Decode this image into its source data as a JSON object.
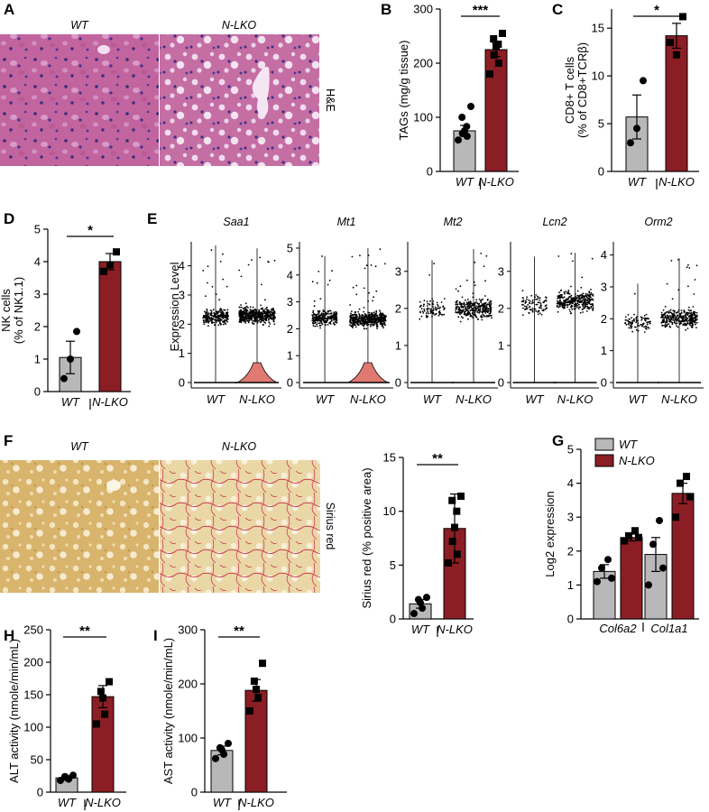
{
  "colors": {
    "wt": "#b8b8b8",
    "nlko": "#8b1e24",
    "violin": "#e07a70"
  },
  "panels": {
    "A": {
      "letter": "A",
      "left_label": "WT",
      "right_label": "N-LKO",
      "stain": "H&E"
    },
    "F": {
      "letter": "F",
      "left_label": "WT",
      "right_label": "N-LKO",
      "stain": "Sirius red"
    },
    "E": {
      "letter": "E",
      "ylabel": "Expression Level"
    },
    "G": {
      "letter": "G"
    }
  },
  "chart_data": [
    {
      "id": "B",
      "type": "bar",
      "letter": "B",
      "categories": [
        "WT",
        "N-LKO"
      ],
      "values": [
        75,
        225
      ],
      "errors": [
        10,
        13
      ],
      "points": [
        [
          58,
          65,
          70,
          75,
          83,
          100,
          120
        ],
        [
          180,
          200,
          215,
          230,
          235,
          245,
          255
        ]
      ],
      "ylabel": "TAGs (mg/g tissue)",
      "yticks": [
        0,
        100,
        200,
        300
      ],
      "ylim": [
        0,
        300
      ],
      "significance": "***"
    },
    {
      "id": "C",
      "type": "bar",
      "letter": "C",
      "categories": [
        "WT",
        "N-LKO"
      ],
      "values": [
        5.7,
        14.2
      ],
      "errors": [
        2.3,
        1.3
      ],
      "points": [
        [
          3,
          4.5,
          9.5
        ],
        [
          13.5,
          12.2,
          16.2
        ]
      ],
      "ylabel": "CD8+ T cells",
      "ylabel2": "(% of CD8+TCRβ)",
      "yticks": [
        0,
        5,
        10,
        15
      ],
      "ylim": [
        0,
        17
      ],
      "significance": "*"
    },
    {
      "id": "D",
      "type": "bar",
      "letter": "D",
      "categories": [
        "WT",
        "N-LKO"
      ],
      "values": [
        1.05,
        4.0
      ],
      "errors": [
        0.5,
        0.25
      ],
      "points": [
        [
          0.4,
          1.0,
          1.85
        ],
        [
          3.7,
          3.9,
          4.3
        ]
      ],
      "ylabel": "NK cells",
      "ylabel2": "(% of NK1.1)",
      "yticks": [
        0,
        1,
        2,
        3,
        4,
        5
      ],
      "ylim": [
        0,
        5
      ],
      "significance": "*"
    },
    {
      "id": "F",
      "type": "bar",
      "letter": "",
      "categories": [
        "WT",
        "N-LKO"
      ],
      "values": [
        1.4,
        8.4
      ],
      "errors": [
        0.4,
        3.2
      ],
      "points": [
        [
          0.5,
          1.0,
          1.5,
          1.8,
          2.0
        ],
        [
          5.2,
          6.0,
          7.2,
          8.5,
          10.0,
          11.0,
          11.4
        ]
      ],
      "ylabel": "Sirius red (% positive area)",
      "yticks": [
        0,
        5,
        10,
        15
      ],
      "ylim": [
        0,
        15
      ],
      "significance": "**"
    },
    {
      "id": "H",
      "type": "bar",
      "letter": "H",
      "categories": [
        "WT",
        "N-LKO"
      ],
      "values": [
        22,
        147
      ],
      "errors": [
        3,
        17
      ],
      "points": [
        [
          18,
          20,
          22,
          24,
          26
        ],
        [
          105,
          120,
          145,
          155,
          170
        ]
      ],
      "ylabel": "ALT activity (nmole/min/mL)",
      "yticks": [
        0,
        50,
        100,
        150,
        200,
        250
      ],
      "ylim": [
        0,
        250
      ],
      "significance": "**"
    },
    {
      "id": "I",
      "type": "bar",
      "letter": "I",
      "categories": [
        "WT",
        "N-LKO"
      ],
      "values": [
        77,
        188
      ],
      "errors": [
        8,
        20
      ],
      "points": [
        [
          62,
          70,
          78,
          82,
          90
        ],
        [
          150,
          175,
          190,
          205,
          238
        ]
      ],
      "ylabel": "AST activity (nmole/min/mL)",
      "yticks": [
        0,
        100,
        200,
        300
      ],
      "ylim": [
        0,
        300
      ],
      "significance": "**"
    },
    {
      "id": "G",
      "type": "bar",
      "categories": [
        "Col6a2",
        "Col1a1"
      ],
      "series": [
        {
          "name": "WT",
          "values": [
            1.4,
            1.9
          ],
          "errors": [
            0.2,
            0.5
          ],
          "points": [
            [
              1.1,
              1.2,
              1.5,
              1.75
            ],
            [
              1.0,
              1.5,
              2.2,
              2.9
            ]
          ]
        },
        {
          "name": "N-LKO",
          "values": [
            2.4,
            3.7
          ],
          "errors": [
            0.1,
            0.3
          ],
          "points": [
            [
              2.3,
              2.4,
              2.45,
              2.6
            ],
            [
              3.0,
              3.6,
              4.0,
              4.2
            ]
          ]
        }
      ],
      "ylabel": "Log2 expression",
      "yticks": [
        0,
        1,
        2,
        3,
        4,
        5
      ],
      "ylim": [
        0,
        5
      ],
      "legend": [
        "WT",
        "N-LKO"
      ]
    },
    {
      "id": "E",
      "type": "violin",
      "genes": [
        {
          "name": "Saa1",
          "yticks": [
            0,
            1,
            2,
            3,
            4
          ],
          "ylim": [
            0,
            4.7
          ],
          "wt_center": 2.25,
          "nlko_center": 2.3,
          "wt_max": 4.7,
          "nlko_max": 4.6,
          "nlko_base": true
        },
        {
          "name": "Mt1",
          "yticks": [
            0,
            1,
            2,
            3,
            4,
            5
          ],
          "ylim": [
            0,
            5.1
          ],
          "wt_center": 2.4,
          "nlko_center": 2.35,
          "wt_max": 4.7,
          "nlko_max": 5.0,
          "nlko_base": true
        },
        {
          "name": "Mt2",
          "yticks": [
            0,
            1,
            2,
            3
          ],
          "ylim": [
            0,
            3.7
          ],
          "wt_center": 2.0,
          "nlko_center": 2.0,
          "wt_max": 3.3,
          "nlko_max": 3.6,
          "nlko_base": false
        },
        {
          "name": "Lcn2",
          "yticks": [
            0,
            1,
            2,
            3
          ],
          "ylim": [
            0,
            3.7
          ],
          "wt_center": 2.1,
          "nlko_center": 2.2,
          "wt_max": 3.4,
          "nlko_max": 3.5,
          "nlko_base": false
        },
        {
          "name": "Orm2",
          "yticks": [
            0,
            1,
            2,
            3,
            4
          ],
          "ylim": [
            0,
            4.3
          ],
          "wt_center": 1.9,
          "nlko_center": 2.0,
          "wt_max": 3.1,
          "nlko_max": 3.9,
          "nlko_base": false
        }
      ],
      "categories": [
        "WT",
        "N-LKO"
      ]
    }
  ]
}
